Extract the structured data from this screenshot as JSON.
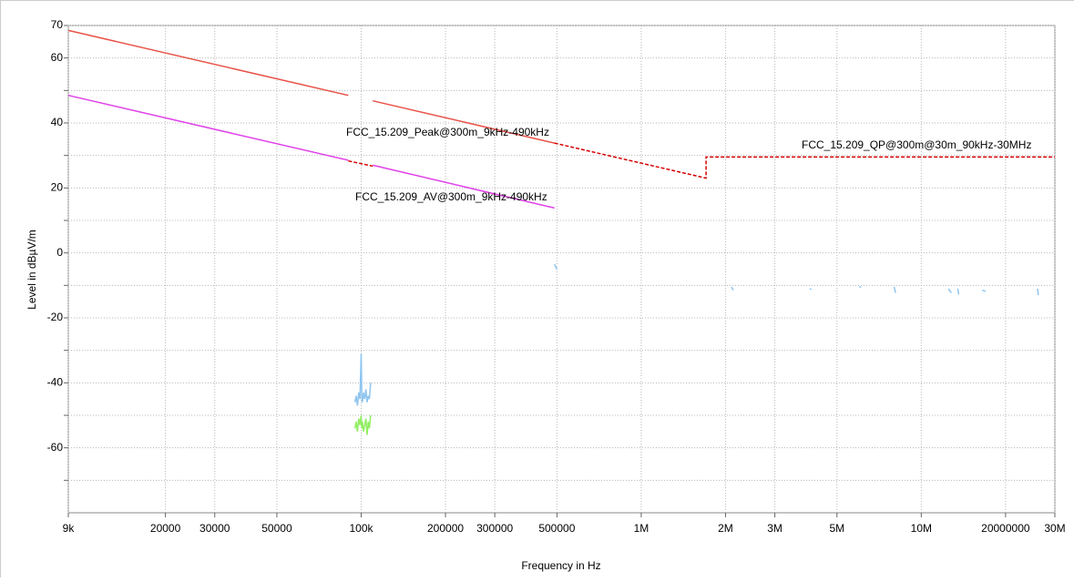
{
  "chart_data": {
    "type": "line",
    "xlabel": "Frequency in Hz",
    "ylabel": "Level in dBµV/m",
    "xscale": "log",
    "grid": true,
    "xlim": [
      9000,
      30000000
    ],
    "ylim": [
      -80,
      70
    ],
    "xticks": [
      {
        "value": 9000,
        "label": "9k"
      },
      20000,
      30000,
      50000,
      {
        "value": 100000,
        "label": "100k"
      },
      200000,
      300000,
      500000,
      {
        "value": 1000000,
        "label": "1M"
      },
      {
        "value": 2000000,
        "label": "2M"
      },
      {
        "value": 3000000,
        "label": "3M"
      },
      {
        "value": 5000000,
        "label": "5M"
      },
      {
        "value": 10000000,
        "label": "10M"
      },
      20000000,
      {
        "value": 30000000,
        "label": "30M"
      }
    ],
    "yticks": [
      70,
      60,
      40,
      20,
      0,
      -20,
      -40,
      -60
    ],
    "y_minor_ticks": [
      50,
      30,
      10,
      -10,
      -30,
      -50,
      -70
    ],
    "series": [
      {
        "name": "FCC_15.209_Peak@300m_9kHz-490kHz",
        "color": "#e8534a",
        "dashed": false,
        "x": [
          9000,
          90000,
          100000,
          110000,
          490000
        ],
        "values": [
          68.5,
          48.5,
          null,
          46.8,
          33.8
        ]
      },
      {
        "name": "FCC_15.209_QP@300m@30m_90kHz-30MHz",
        "color": "#d40000",
        "dashed": true,
        "x": [
          90000,
          110000,
          200000,
          490000,
          1705000,
          1705000,
          30000000
        ],
        "values": [
          28.3,
          26.7,
          null,
          33.8,
          23,
          29.5,
          29.5
        ]
      },
      {
        "name": "FCC_15.209_AV@300m_9kHz-490kHz",
        "color": "#e040e8",
        "dashed": false,
        "x": [
          9000,
          90000,
          100000,
          110000,
          490000
        ],
        "values": [
          48.5,
          28.5,
          null,
          27,
          13.8
        ]
      },
      {
        "color": "#8ec5f0",
        "dashed": false,
        "x": [
          95000,
          96000,
          97000,
          98000,
          99000,
          100000,
          100500,
          101000,
          102000,
          103000,
          104000,
          105000,
          106000,
          107000,
          108000,
          300000,
          490000,
          500000,
          1000000,
          2100000,
          2130000,
          3000000,
          4000000,
          4050000,
          5000000,
          6000000,
          6100000,
          7000000,
          8000000,
          8100000,
          10000000,
          12500000,
          12800000,
          13000000,
          13500000,
          13600000,
          15000000,
          16500000,
          17000000,
          20000000,
          26000000,
          26200000
        ],
        "values": [
          -46,
          -44,
          -47,
          -43,
          -45,
          -31,
          -44,
          -46,
          -43,
          -45,
          -42,
          -46,
          -44,
          -45,
          -40,
          null,
          -3.5,
          -5,
          null,
          -10.5,
          -11.5,
          null,
          -11,
          -11.3,
          null,
          -10.3,
          -10.6,
          null,
          -10.5,
          -12.3,
          null,
          -11,
          -12.3,
          null,
          -11,
          -12.8,
          null,
          -11.5,
          -11.8,
          null,
          -11,
          -13
        ]
      },
      {
        "color": "#90ee60",
        "dashed": false,
        "x": [
          95000,
          96000,
          97000,
          98000,
          99000,
          100000,
          100500,
          101000,
          102000,
          103000,
          104000,
          105000,
          106000,
          107000,
          108000
        ],
        "values": [
          -54,
          -52,
          -55,
          -51,
          -53,
          -50,
          -54,
          -52,
          -55,
          -53,
          -51,
          -56,
          -52,
          -54,
          -50
        ]
      }
    ]
  }
}
